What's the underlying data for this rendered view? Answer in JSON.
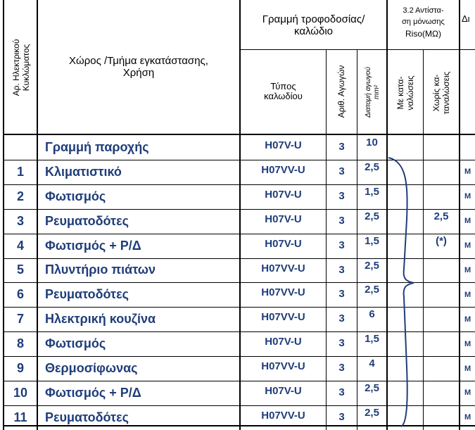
{
  "header": {
    "circuit_no": "Αρ. Ηλεκτρικού Κυκλώματος",
    "location_use": "Χώρος /Τμήμα εγκατάστασης, Χρήση",
    "supply_line": "Γραμμή τροφοδοσίας/ καλώδιο",
    "cable_type": "Τύπος καλωδίου",
    "conductor_count": "Αριθ. Αγωγών",
    "cross_section": "Διατομή αγωγού mm²",
    "insulation_title_line1": "3.2 Αντίστα-",
    "insulation_title_line2": "ση μόνωσης",
    "insulation_unit": "Riso(MΩ)",
    "with_loads": "Με κατα- ναλώσεις",
    "without_loads": "Χωρίς κα- ταναλώσεις",
    "next_col_cut": "Δι"
  },
  "rows": [
    {
      "no": "",
      "use": "Γραμμή παροχής",
      "type": "H07V-U",
      "count": "3",
      "section": "10",
      "without": "",
      "cut": ""
    },
    {
      "no": "1",
      "use": "Κλιματιστικό",
      "type": "H07VV-U",
      "count": "3",
      "section": "2,5",
      "without": "",
      "cut": "Μ"
    },
    {
      "no": "2",
      "use": "Φωτισμός",
      "type": "H07V-U",
      "count": "3",
      "section": "1,5",
      "without": "",
      "cut": "Μ"
    },
    {
      "no": "3",
      "use": "Ρευματοδότες",
      "type": "H07V-U",
      "count": "3",
      "section": "2,5",
      "without": "2,5",
      "cut": "Μ"
    },
    {
      "no": "4",
      "use": "Φωτισμός + Ρ/Δ",
      "type": "H07V-U",
      "count": "3",
      "section": "1,5",
      "without": "(*)",
      "cut": "Μ"
    },
    {
      "no": "5",
      "use": "Πλυντήριο πιάτων",
      "type": "H07VV-U",
      "count": "3",
      "section": "2,5",
      "without": "",
      "cut": "Μ"
    },
    {
      "no": "6",
      "use": "Ρευματοδότες",
      "type": "H07VV-U",
      "count": "3",
      "section": "2,5",
      "without": "",
      "cut": "Μ"
    },
    {
      "no": "7",
      "use": "Ηλεκτρική κουζίνα",
      "type": "H07VV-U",
      "count": "3",
      "section": "6",
      "without": "",
      "cut": "Μ"
    },
    {
      "no": "8",
      "use": "Φωτισμός",
      "type": "H07V-U",
      "count": "3",
      "section": "1,5",
      "without": "",
      "cut": "Μ"
    },
    {
      "no": "9",
      "use": "Θερμοσίφωνας",
      "type": "H07VV-U",
      "count": "3",
      "section": "4",
      "without": "",
      "cut": "Μ"
    },
    {
      "no": "10",
      "use": "Φωτισμός + Ρ/Δ",
      "type": "H07V-U",
      "count": "3",
      "section": "2,5",
      "without": "",
      "cut": "Μ"
    },
    {
      "no": "11",
      "use": "Ρευματοδότες",
      "type": "H07VV-U",
      "count": "3",
      "section": "2,5",
      "without": "",
      "cut": "Μ"
    }
  ]
}
